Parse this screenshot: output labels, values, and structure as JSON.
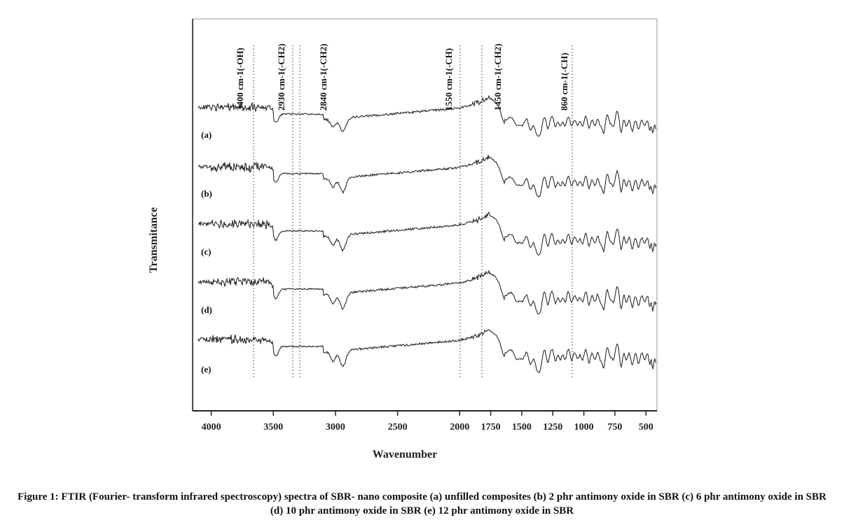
{
  "caption": "Figure 1: FTIR (Fourier- transform infrared spectroscopy) spectra of SBR- nano composite (a) unfilled composites (b) 2 phr antimony oxide in SBR (c) 6 phr antimony oxide in SBR (d) 10 phr antimony oxide in SBR (e) 12 phr antimony oxide in SBR",
  "chart_data": {
    "type": "line",
    "title": "",
    "xlabel": "Wavenumber",
    "ylabel": "Transmitance",
    "xlim": [
      4150,
      400
    ],
    "x_reversed": true,
    "x_ticks": [
      4000,
      3500,
      3000,
      2500,
      2000,
      1750,
      1500,
      1250,
      1000,
      750,
      500
    ],
    "y_ticks_shown": false,
    "grid": false,
    "legend": "none",
    "series": [
      {
        "name": "(a)"
      },
      {
        "name": "(b)"
      },
      {
        "name": "(c)"
      },
      {
        "name": "(d)"
      },
      {
        "name": "(e)"
      }
    ],
    "annotations": [
      {
        "x": 3400,
        "label": "3400 cm-1(-OH)"
      },
      {
        "x": 2930,
        "label": "2930 cm-1(-CH2)"
      },
      {
        "x": 2840,
        "label": "2840 cm-1(-CH2)"
      },
      {
        "x": 1550,
        "label": "1550 cm-1(-CH)"
      },
      {
        "x": 1450,
        "label": "1450 cm-1(-CH2)"
      },
      {
        "x": 860,
        "label": "860 cm-1(-CH)"
      }
    ],
    "line_color": "#2a2a2a"
  }
}
